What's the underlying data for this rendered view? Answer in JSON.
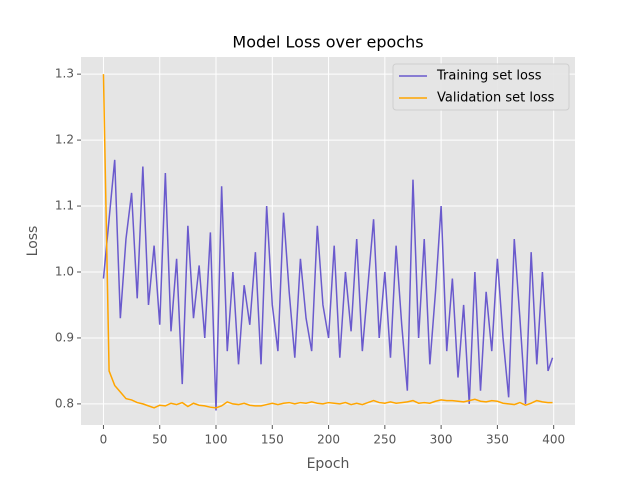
{
  "chart_data": {
    "type": "line",
    "title": "Model Loss over epochs",
    "x_label": "Epoch",
    "y_label": "Loss",
    "x": [
      0,
      5,
      10,
      15,
      20,
      25,
      30,
      35,
      40,
      45,
      50,
      55,
      60,
      65,
      70,
      75,
      80,
      85,
      90,
      95,
      100,
      105,
      110,
      115,
      120,
      125,
      130,
      135,
      140,
      145,
      150,
      155,
      160,
      165,
      170,
      175,
      180,
      185,
      190,
      195,
      200,
      205,
      210,
      215,
      220,
      225,
      230,
      235,
      240,
      245,
      250,
      255,
      260,
      265,
      270,
      275,
      280,
      285,
      290,
      295,
      300,
      305,
      310,
      315,
      320,
      325,
      330,
      335,
      340,
      345,
      350,
      355,
      360,
      365,
      370,
      375,
      380,
      385,
      390,
      395,
      399
    ],
    "series": [
      {
        "name": "Training set loss",
        "color": "#6a5acd",
        "values": [
          0.99,
          1.08,
          1.17,
          0.93,
          1.05,
          1.12,
          0.96,
          1.16,
          0.95,
          1.04,
          0.92,
          1.15,
          0.91,
          1.02,
          0.83,
          1.07,
          0.93,
          1.01,
          0.9,
          1.06,
          0.79,
          1.13,
          0.88,
          1.0,
          0.86,
          0.98,
          0.92,
          1.03,
          0.86,
          1.1,
          0.95,
          0.88,
          1.09,
          0.97,
          0.87,
          1.02,
          0.93,
          0.88,
          1.07,
          0.95,
          0.9,
          1.04,
          0.87,
          1.0,
          0.91,
          1.05,
          0.88,
          0.98,
          1.08,
          0.9,
          1.0,
          0.87,
          1.04,
          0.92,
          0.82,
          1.14,
          0.9,
          1.05,
          0.86,
          0.97,
          1.1,
          0.88,
          0.99,
          0.84,
          0.95,
          0.8,
          1.0,
          0.82,
          0.97,
          0.88,
          1.02,
          0.9,
          0.81,
          1.05,
          0.93,
          0.8,
          1.03,
          0.86,
          1.0,
          0.85,
          0.87
        ]
      },
      {
        "name": "Validation set loss",
        "color": "#ffa500",
        "values": [
          1.3,
          0.85,
          0.828,
          0.818,
          0.808,
          0.806,
          0.802,
          0.8,
          0.797,
          0.794,
          0.798,
          0.797,
          0.801,
          0.799,
          0.802,
          0.796,
          0.801,
          0.798,
          0.797,
          0.795,
          0.794,
          0.797,
          0.803,
          0.8,
          0.799,
          0.801,
          0.798,
          0.797,
          0.797,
          0.799,
          0.801,
          0.799,
          0.801,
          0.802,
          0.8,
          0.802,
          0.801,
          0.803,
          0.801,
          0.8,
          0.802,
          0.801,
          0.8,
          0.802,
          0.799,
          0.801,
          0.799,
          0.802,
          0.805,
          0.802,
          0.801,
          0.803,
          0.801,
          0.802,
          0.803,
          0.805,
          0.801,
          0.802,
          0.801,
          0.804,
          0.806,
          0.805,
          0.805,
          0.804,
          0.803,
          0.805,
          0.807,
          0.804,
          0.803,
          0.805,
          0.804,
          0.801,
          0.8,
          0.799,
          0.802,
          0.798,
          0.801,
          0.805,
          0.803,
          0.802,
          0.802
        ]
      }
    ],
    "xlim": [
      -19.95,
      418.95
    ],
    "ylim": [
      0.768,
      1.326
    ],
    "xticks": [
      0,
      50,
      100,
      150,
      200,
      250,
      300,
      350,
      400
    ],
    "yticks": [
      0.8,
      0.9,
      {
        "value": 1,
        "label": "1.0"
      },
      1.1,
      1.2,
      1.3
    ],
    "grid": true,
    "legend": "upper right"
  }
}
